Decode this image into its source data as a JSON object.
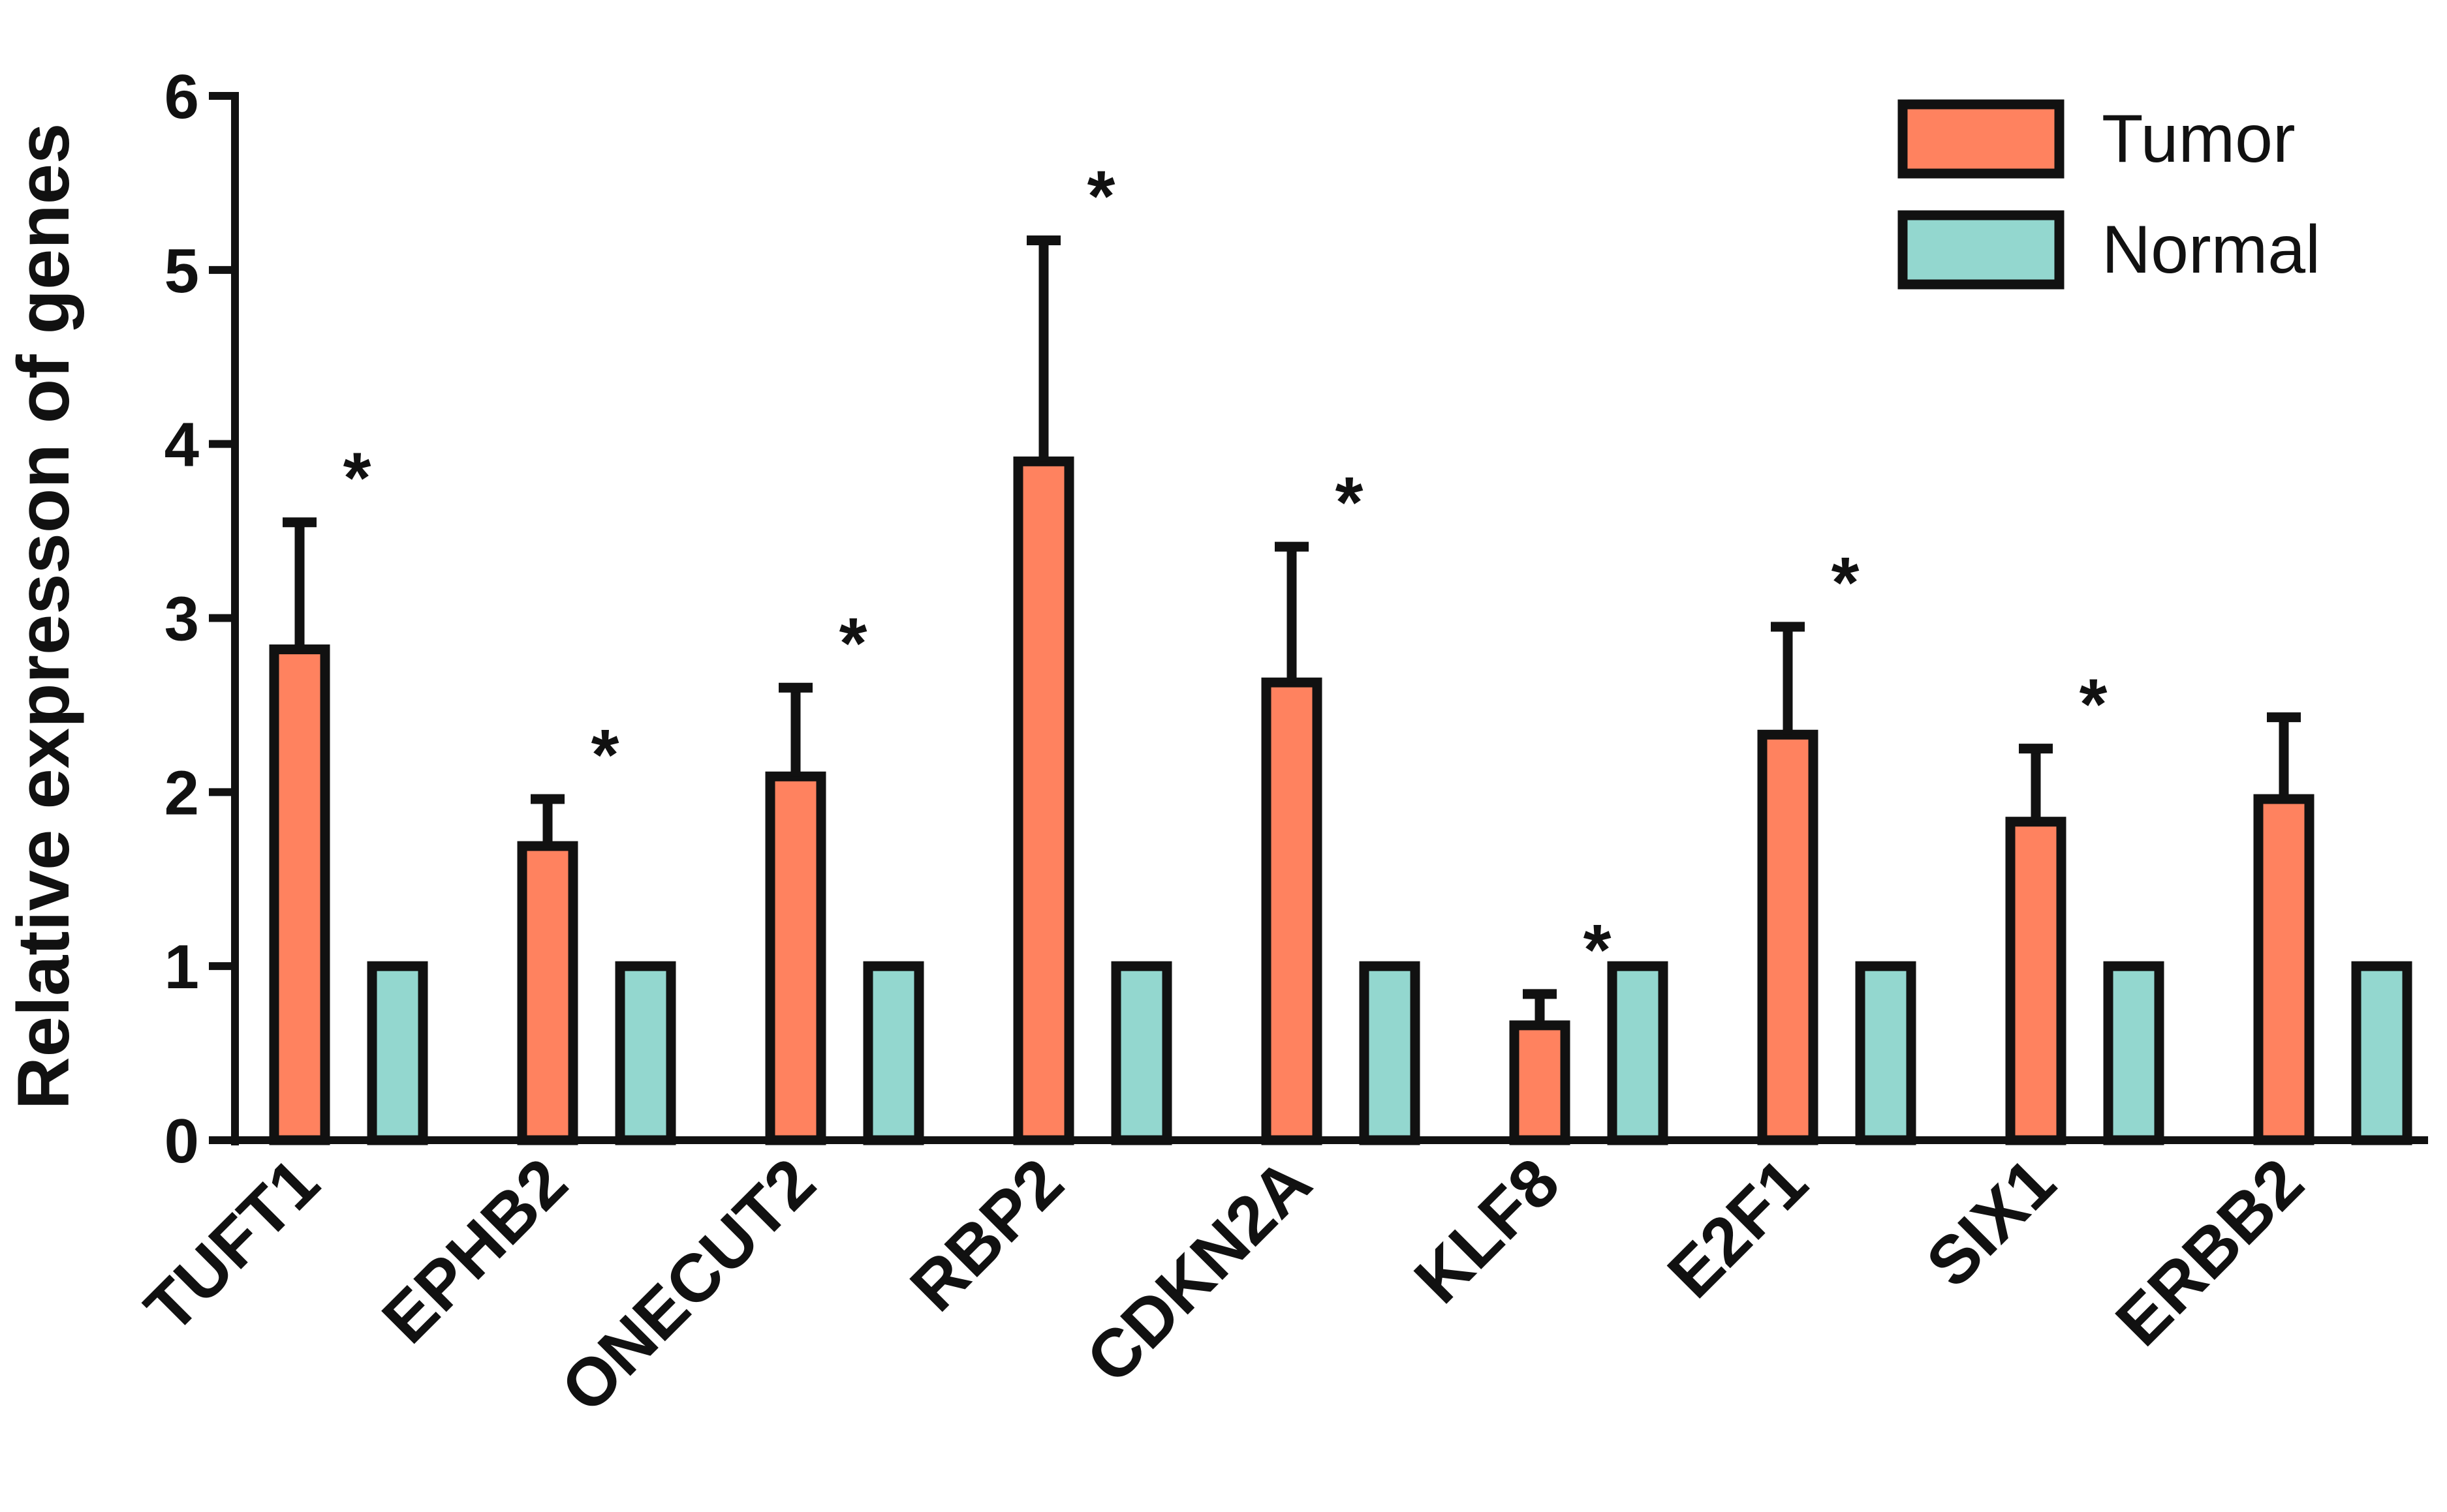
{
  "chart_data": {
    "type": "bar",
    "title": "",
    "xlabel": "",
    "ylabel": "Relative expresson of genes",
    "ylim": [
      0,
      6
    ],
    "yticks": [
      "0",
      "1",
      "2",
      "3",
      "4",
      "5",
      "6"
    ],
    "grid": false,
    "legend_position": "top-right",
    "categories": [
      "TUFT1",
      "EPHB2",
      "ONECUT2",
      "RBP2",
      "CDKN2A",
      "KLF8",
      "E2F1",
      "SIX1",
      "ERBB2"
    ],
    "series": [
      {
        "name": "Tumor",
        "color": "#FF825F",
        "values": [
          2.82,
          1.69,
          2.09,
          3.9,
          2.63,
          0.66,
          2.33,
          1.83,
          1.96
        ],
        "error_upper": [
          3.55,
          1.96,
          2.6,
          5.17,
          3.41,
          0.84,
          2.95,
          2.25,
          2.43
        ]
      },
      {
        "name": "Normal",
        "color": "#93D7CF",
        "values": [
          1,
          1,
          1,
          1,
          1,
          1,
          1,
          1,
          1
        ]
      }
    ],
    "significance": [
      "*",
      "*",
      "*",
      "*",
      "*",
      "*",
      "*",
      "*",
      ""
    ]
  }
}
